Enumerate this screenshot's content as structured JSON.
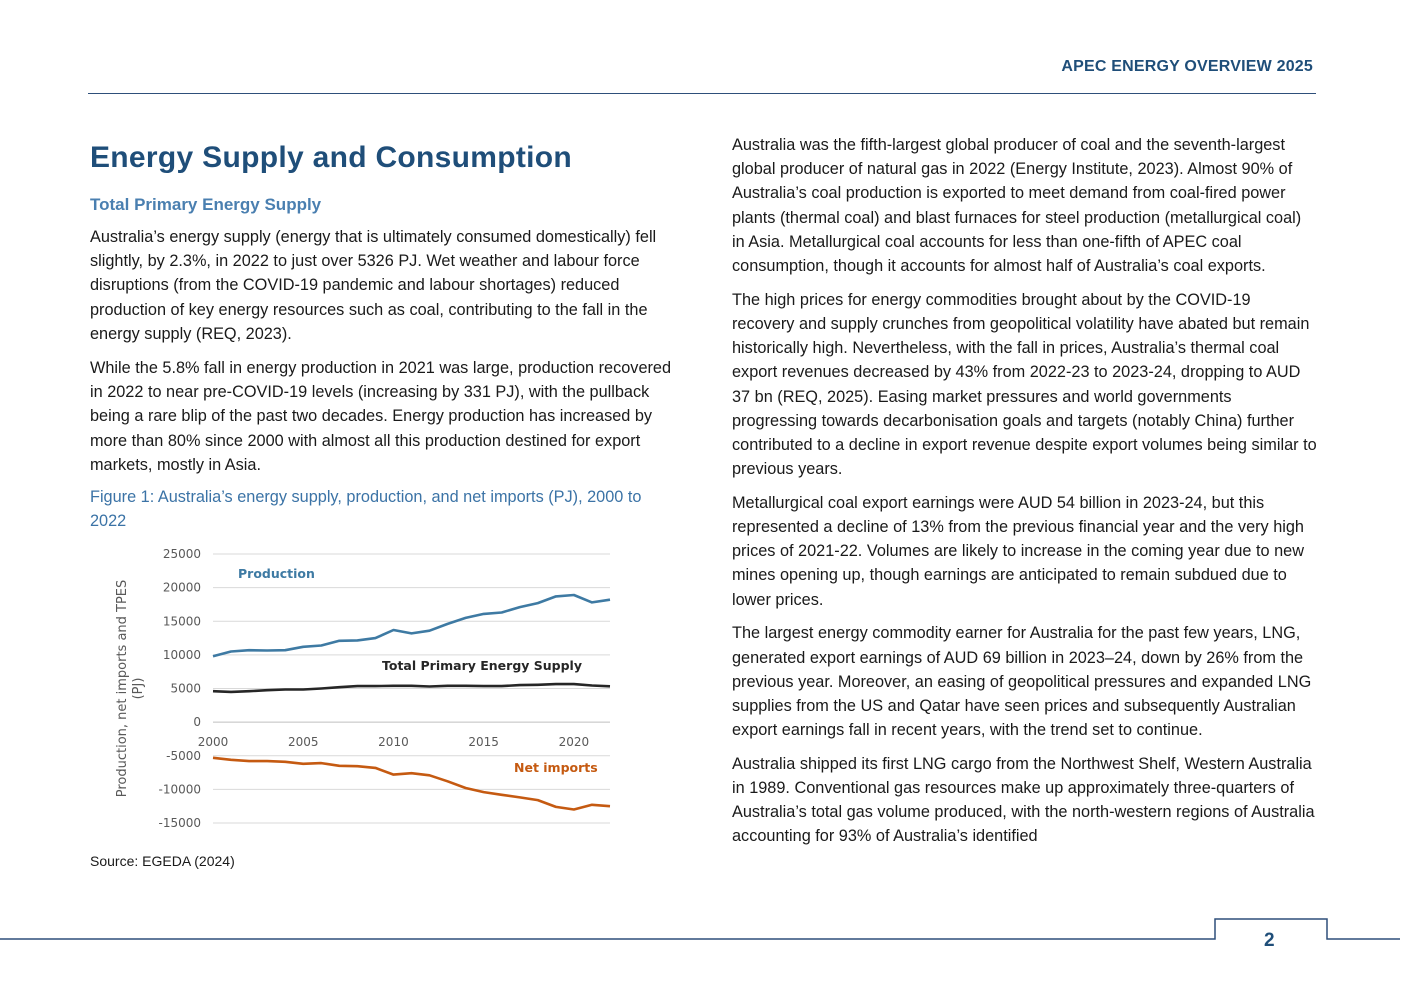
{
  "header": {
    "title": "APEC ENERGY OVERVIEW 2025"
  },
  "left": {
    "heading": "Energy Supply and Consumption",
    "subheading": "Total Primary Energy Supply",
    "paragraphs": [
      "Australia’s energy supply (energy that is ultimately consumed domestically) fell slightly, by 2.3%, in 2022 to just over 5326 PJ. Wet weather and labour force disruptions (from the COVID-19 pandemic and labour shortages) reduced production of key energy resources such as coal, contributing to the fall in the energy supply (REQ, 2023).",
      "While the 5.8% fall in energy production in 2021 was large, production recovered in 2022 to near pre-COVID-19 levels (increasing by 331 PJ), with the pullback being a rare blip of the past two decades. Energy production has increased by more than 80% since 2000 with almost all this production destined for export markets, mostly in Asia."
    ],
    "figure_caption": "Figure 1: Australia’s energy supply, production, and net imports (PJ), 2000 to 2022",
    "source": "Source: EGEDA (2024)"
  },
  "right": {
    "paragraphs": [
      "Australia was the fifth-largest global producer of coal and the seventh-largest global producer of natural gas in 2022 (Energy Institute, 2023). Almost 90% of Australia’s coal production is exported to meet demand from coal-fired power plants (thermal coal) and blast furnaces for steel production (metallurgical coal) in Asia. Metallurgical coal accounts for less than one-fifth of APEC coal consumption, though it accounts for almost half of Australia’s coal exports.",
      "The high prices for energy commodities brought about by the COVID-19 recovery and supply crunches from geopolitical volatility have abated but remain historically high. Nevertheless, with the fall in prices, Australia’s thermal coal export revenues decreased by 43% from 2022-23 to 2023-24, dropping to AUD 37 bn (REQ, 2025). Easing market pressures and world governments progressing towards decarbonisation goals and targets (notably China) further contributed to a decline in export revenue despite export volumes being similar to previous years.",
      "Metallurgical coal export earnings were AUD 54 billion in 2023-24, but this represented a decline of 13% from the previous financial year and the very high prices of 2021-22. Volumes are likely to increase in the coming year due to new mines opening up, though earnings are anticipated to remain subdued due to lower prices.",
      "The largest energy commodity earner for Australia for the past few years, LNG, generated export earnings of AUD 69 billion in 2023–24, down by 26% from the previous year. Moreover, an easing of geopolitical pressures and expanded LNG supplies from the US and Qatar have seen prices and subsequently Australian export earnings fall in recent years, with the trend set to continue.",
      "Australia shipped its first LNG cargo from the Northwest Shelf, Western Australia in 1989. Conventional gas resources make up approximately three-quarters of Australia’s total gas volume produced, with the north-western regions of Australia accounting for 93% of Australia’s identified"
    ]
  },
  "footer": {
    "page_number": "2"
  },
  "chart_data": {
    "type": "line",
    "ylabel": "Production, net imports and TPES (PJ)",
    "ylim": [
      -15000,
      25000
    ],
    "yticks": [
      "25000",
      "20000",
      "15000",
      "10000",
      "5000",
      "0",
      "-5000",
      "-10000",
      "-15000"
    ],
    "xticks": [
      "2000",
      "2005",
      "2010",
      "2015",
      "2020"
    ],
    "x": [
      2000,
      2001,
      2002,
      2003,
      2004,
      2005,
      2006,
      2007,
      2008,
      2009,
      2010,
      2011,
      2012,
      2013,
      2014,
      2015,
      2016,
      2017,
      2018,
      2019,
      2020,
      2021,
      2022
    ],
    "series": [
      {
        "name": "Production",
        "color": "#3e7aa3",
        "values": [
          9800,
          10500,
          10700,
          10650,
          10700,
          11200,
          11400,
          12100,
          12150,
          12500,
          13700,
          13200,
          13600,
          14600,
          15500,
          16100,
          16300,
          17100,
          17700,
          18700,
          18900,
          17800,
          18200
        ]
      },
      {
        "name": "Total Primary Energy Supply",
        "color": "#262626",
        "values": [
          4600,
          4500,
          4600,
          4750,
          4850,
          4850,
          5000,
          5200,
          5350,
          5350,
          5400,
          5400,
          5300,
          5400,
          5400,
          5350,
          5350,
          5500,
          5550,
          5650,
          5650,
          5450,
          5326
        ]
      },
      {
        "name": "Net imports",
        "color": "#c55a11",
        "values": [
          -5300,
          -5600,
          -5800,
          -5800,
          -5900,
          -6200,
          -6100,
          -6500,
          -6550,
          -6800,
          -7800,
          -7600,
          -7900,
          -8800,
          -9800,
          -10400,
          -10800,
          -11200,
          -11600,
          -12600,
          -13000,
          -12300,
          -12500
        ]
      }
    ],
    "grid": "horizontal",
    "legend": "inline labels"
  }
}
